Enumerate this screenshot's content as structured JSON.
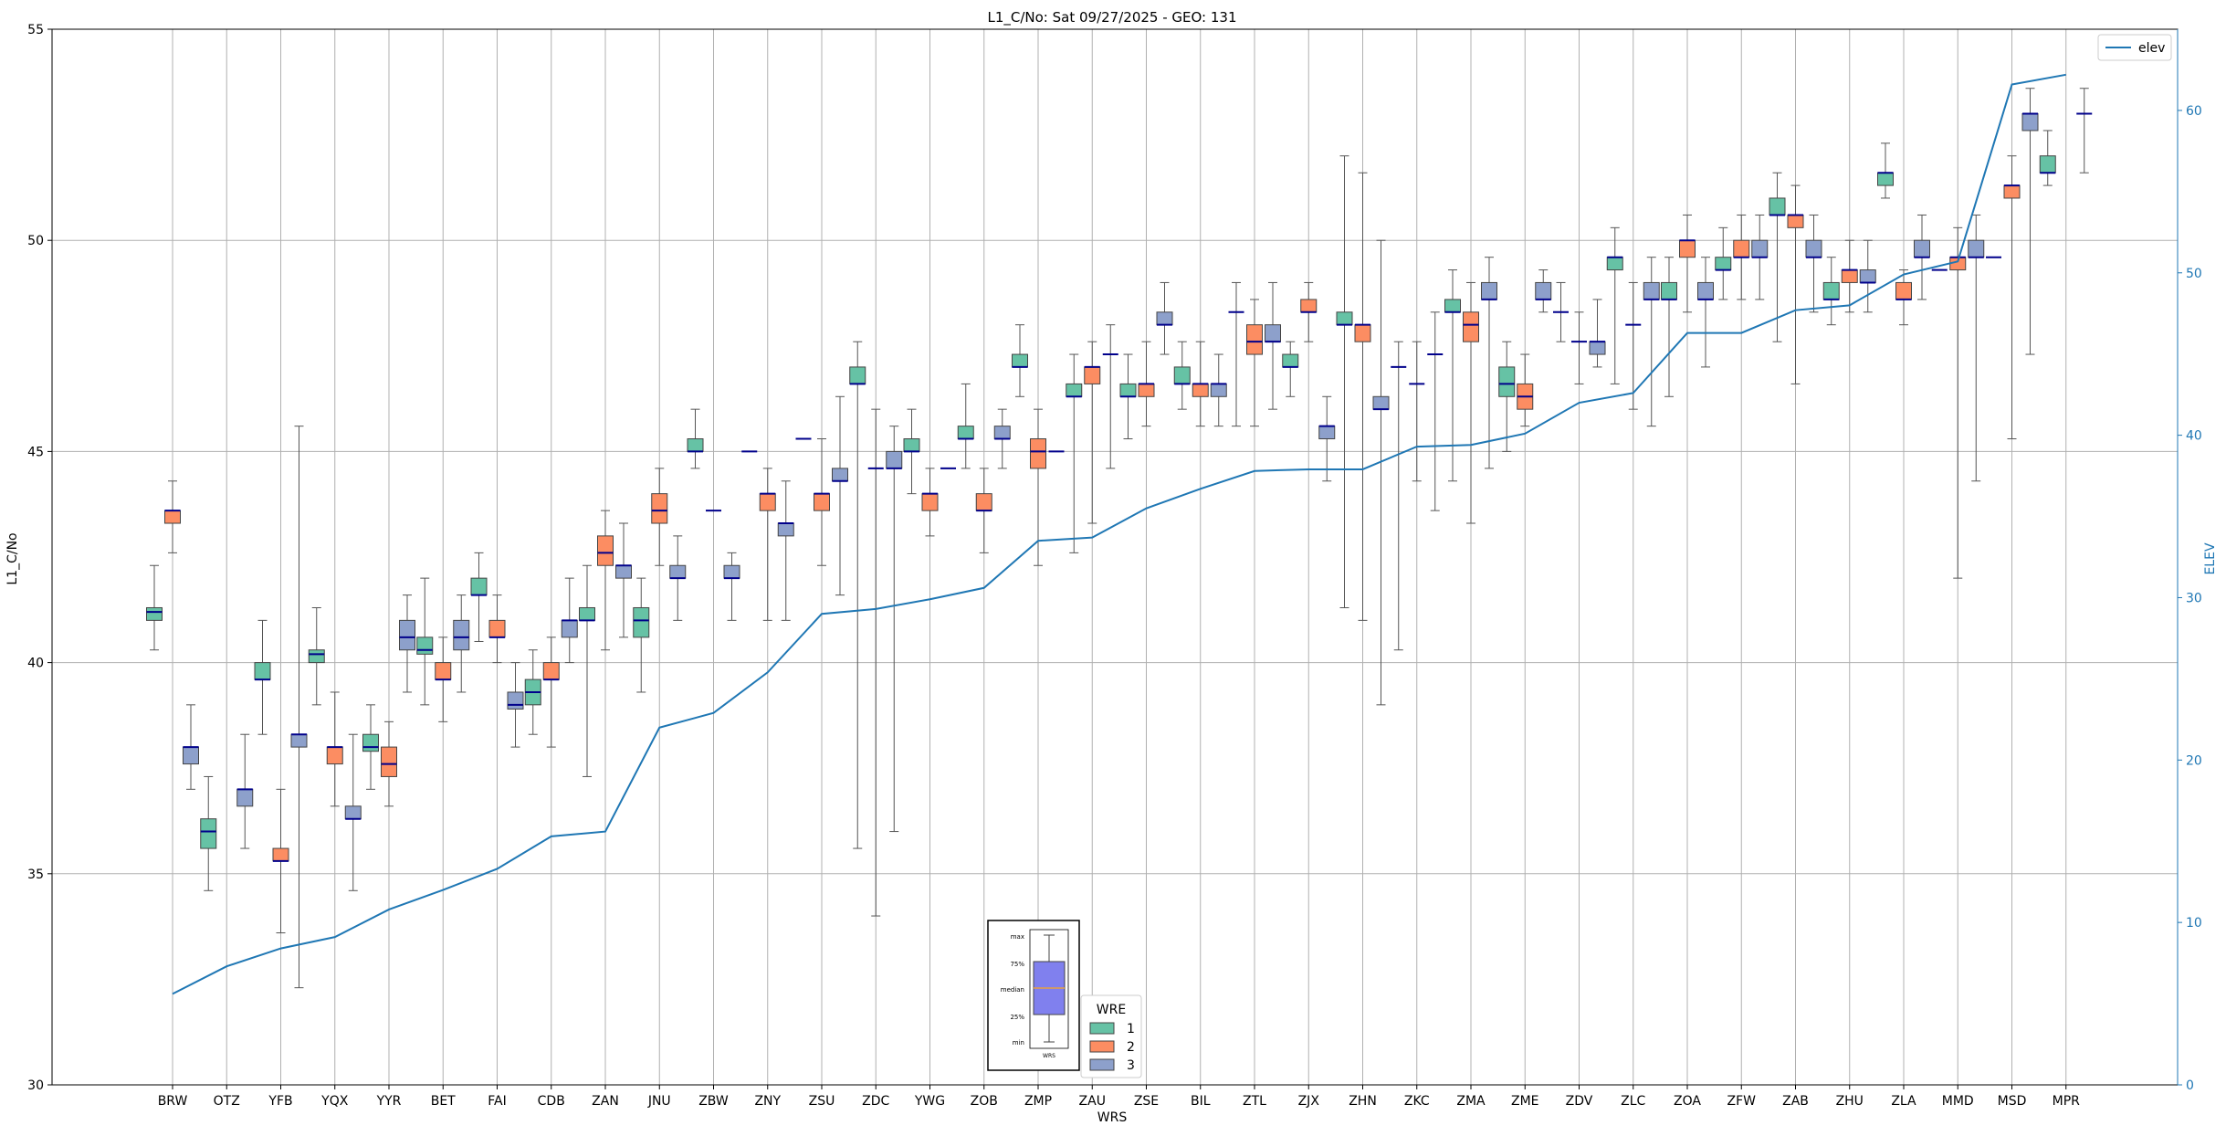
{
  "chart_data": {
    "type": "box",
    "title": "L1_C/No: Sat 09/27/2025 - GEO: 131",
    "xlabel": "WRS",
    "ylabel": "L1_C/No",
    "y2label": "ELEV",
    "ylim": [
      30,
      55
    ],
    "y2lim": [
      0,
      65
    ],
    "yticks": [
      30,
      35,
      40,
      45,
      50,
      55
    ],
    "y2ticks": [
      0,
      10,
      20,
      30,
      40,
      50,
      60
    ],
    "grid": true,
    "colors": {
      "wre1": "#66c2a5",
      "wre2": "#fc8d62",
      "wre3": "#8da0cb",
      "median": "#00008b",
      "elev": "#1f77b4",
      "whisker": "#555555"
    },
    "categories": [
      "BRW",
      "OTZ",
      "YFB",
      "YQX",
      "YYR",
      "BET",
      "FAI",
      "CDB",
      "ZAN",
      "JNU",
      "ZBW",
      "ZNY",
      "ZSU",
      "ZDC",
      "YWG",
      "ZOB",
      "ZMP",
      "ZAU",
      "ZSE",
      "BIL",
      "ZTL",
      "ZJX",
      "ZHN",
      "ZKC",
      "ZMA",
      "ZME",
      "ZDV",
      "ZLC",
      "ZOA",
      "ZFW",
      "ZAB",
      "ZHU",
      "ZLA",
      "MMD",
      "MSD",
      "MPR"
    ],
    "series": [
      {
        "name": "1",
        "boxes": [
          [
            40.3,
            41.0,
            41.2,
            41.3,
            42.3
          ],
          [
            34.6,
            35.6,
            36.0,
            36.3,
            37.3
          ],
          [
            38.3,
            39.6,
            39.6,
            40.0,
            41.0
          ],
          [
            39.0,
            40.0,
            40.2,
            40.3,
            41.3
          ],
          [
            37.0,
            37.9,
            38.0,
            38.3,
            39.0
          ],
          [
            39.0,
            40.2,
            40.3,
            40.6,
            42.0
          ],
          [
            40.5,
            41.6,
            41.6,
            42.0,
            42.6
          ],
          [
            38.3,
            39.0,
            39.3,
            39.6,
            40.3
          ],
          [
            37.3,
            41.0,
            41.0,
            41.3,
            42.3
          ],
          [
            39.3,
            40.6,
            41.0,
            41.3,
            42.0
          ],
          [
            44.6,
            45.0,
            45.0,
            45.3,
            46.0
          ],
          [
            45.0,
            45.0,
            45.0,
            45.0,
            45.0
          ],
          [
            45.3,
            45.3,
            45.3,
            45.3,
            45.3
          ],
          [
            35.6,
            46.6,
            46.6,
            47.0,
            47.6
          ],
          [
            44.0,
            45.0,
            45.0,
            45.3,
            46.0
          ],
          [
            44.6,
            45.3,
            45.3,
            45.6,
            46.6
          ],
          [
            46.3,
            47.0,
            47.0,
            47.3,
            48.0
          ],
          [
            42.6,
            46.3,
            46.3,
            46.6,
            47.3
          ],
          [
            45.3,
            46.3,
            46.3,
            46.6,
            47.3
          ],
          [
            46.0,
            46.6,
            46.6,
            47.0,
            47.6
          ],
          [
            45.6,
            48.3,
            48.3,
            48.3,
            49.0
          ],
          [
            46.3,
            47.0,
            47.0,
            47.3,
            47.6
          ],
          [
            41.3,
            48.0,
            48.0,
            48.3,
            52.0
          ],
          [
            40.3,
            47.0,
            47.0,
            47.0,
            47.6
          ],
          [
            44.3,
            48.3,
            48.3,
            48.6,
            49.3
          ],
          [
            45.0,
            46.3,
            46.6,
            47.0,
            47.6
          ],
          [
            47.6,
            48.3,
            48.3,
            48.3,
            49.0
          ],
          [
            46.6,
            49.3,
            49.6,
            49.6,
            50.3
          ],
          [
            46.3,
            48.6,
            48.6,
            49.0,
            49.6
          ],
          [
            48.6,
            49.3,
            49.3,
            49.6,
            50.3
          ],
          [
            47.6,
            50.6,
            50.6,
            51.0,
            51.6
          ],
          [
            48.0,
            48.6,
            48.6,
            49.0,
            49.6
          ],
          [
            51.0,
            51.3,
            51.6,
            51.6,
            52.3
          ],
          [
            49.3,
            49.3,
            49.3,
            49.3,
            49.3
          ],
          [
            49.6,
            49.6,
            49.6,
            49.6,
            49.6
          ],
          [
            51.3,
            51.6,
            51.6,
            52.0,
            52.6
          ]
        ]
      },
      {
        "name": "2",
        "boxes": [
          [
            42.6,
            43.3,
            43.6,
            43.6,
            44.3
          ],
          null,
          [
            33.6,
            35.3,
            35.3,
            35.6,
            37.0
          ],
          [
            36.6,
            37.6,
            38.0,
            38.0,
            39.3
          ],
          [
            36.6,
            37.3,
            37.6,
            38.0,
            38.6
          ],
          [
            38.6,
            39.6,
            39.6,
            40.0,
            40.6
          ],
          [
            40.0,
            40.6,
            40.6,
            41.0,
            41.6
          ],
          [
            38.0,
            39.6,
            39.6,
            40.0,
            40.6
          ],
          [
            40.3,
            42.3,
            42.6,
            43.0,
            43.6
          ],
          [
            42.3,
            43.3,
            43.6,
            44.0,
            44.6
          ],
          [
            43.6,
            43.6,
            43.6,
            43.6,
            43.6
          ],
          [
            41.0,
            43.6,
            44.0,
            44.0,
            44.6
          ],
          [
            42.3,
            43.6,
            44.0,
            44.0,
            45.3
          ],
          [
            34.0,
            44.6,
            44.6,
            44.6,
            46.0
          ],
          [
            43.0,
            43.6,
            44.0,
            44.0,
            44.6
          ],
          [
            42.6,
            43.6,
            43.6,
            44.0,
            44.6
          ],
          [
            42.3,
            44.6,
            45.0,
            45.3,
            46.0
          ],
          [
            43.3,
            46.6,
            47.0,
            47.0,
            47.6
          ],
          [
            45.6,
            46.3,
            46.6,
            46.6,
            47.6
          ],
          [
            45.6,
            46.3,
            46.6,
            46.6,
            47.6
          ],
          [
            45.6,
            47.3,
            47.6,
            48.0,
            48.6
          ],
          [
            47.6,
            48.3,
            48.3,
            48.6,
            49.0
          ],
          [
            41.0,
            47.6,
            48.0,
            48.0,
            51.6
          ],
          [
            44.3,
            46.6,
            46.6,
            46.6,
            47.6
          ],
          [
            43.3,
            47.6,
            48.0,
            48.3,
            49.0
          ],
          [
            45.6,
            46.0,
            46.3,
            46.6,
            47.3
          ],
          [
            46.6,
            47.6,
            47.6,
            47.6,
            48.3
          ],
          [
            46.0,
            48.0,
            48.0,
            48.0,
            49.0
          ],
          [
            48.3,
            49.6,
            50.0,
            50.0,
            50.6
          ],
          [
            48.6,
            49.6,
            49.6,
            50.0,
            50.6
          ],
          [
            46.6,
            50.3,
            50.6,
            50.6,
            51.3
          ],
          [
            48.3,
            49.0,
            49.3,
            49.3,
            50.0
          ],
          [
            48.0,
            48.6,
            48.6,
            49.0,
            49.3
          ],
          [
            42.0,
            49.3,
            49.6,
            49.6,
            50.3
          ],
          [
            45.3,
            51.0,
            51.3,
            51.3,
            52.0
          ],
          null
        ]
      },
      {
        "name": "3",
        "boxes": [
          [
            37.0,
            37.6,
            38.0,
            38.0,
            39.0
          ],
          [
            35.6,
            36.6,
            37.0,
            37.0,
            38.3
          ],
          [
            32.3,
            38.0,
            38.3,
            38.3,
            45.6
          ],
          [
            34.6,
            36.3,
            36.3,
            36.6,
            38.3
          ],
          [
            39.3,
            40.3,
            40.6,
            41.0,
            41.6
          ],
          [
            39.3,
            40.3,
            40.6,
            41.0,
            41.6
          ],
          [
            38.0,
            38.9,
            39.0,
            39.3,
            40.0
          ],
          [
            40.0,
            40.6,
            41.0,
            41.0,
            42.0
          ],
          [
            40.6,
            42.0,
            42.3,
            42.3,
            43.3
          ],
          [
            41.0,
            42.0,
            42.0,
            42.3,
            43.0
          ],
          [
            41.0,
            42.0,
            42.0,
            42.3,
            42.6
          ],
          [
            41.0,
            43.0,
            43.3,
            43.3,
            44.3
          ],
          [
            41.6,
            44.3,
            44.3,
            44.6,
            46.3
          ],
          [
            36.0,
            44.6,
            44.6,
            45.0,
            45.6
          ],
          [
            44.6,
            44.6,
            44.6,
            44.6,
            44.6
          ],
          [
            44.6,
            45.3,
            45.3,
            45.6,
            46.0
          ],
          [
            45.0,
            45.0,
            45.0,
            45.0,
            45.0
          ],
          [
            44.6,
            47.3,
            47.3,
            47.3,
            48.0
          ],
          [
            47.3,
            48.0,
            48.0,
            48.3,
            49.0
          ],
          [
            45.6,
            46.3,
            46.6,
            46.6,
            47.3
          ],
          [
            46.0,
            47.6,
            47.6,
            48.0,
            49.0
          ],
          [
            44.3,
            45.3,
            45.6,
            45.6,
            46.3
          ],
          [
            39.0,
            46.0,
            46.0,
            46.3,
            50.0
          ],
          [
            43.6,
            47.3,
            47.3,
            47.3,
            48.3
          ],
          [
            44.6,
            48.6,
            48.6,
            49.0,
            49.6
          ],
          [
            48.3,
            48.6,
            48.6,
            49.0,
            49.3
          ],
          [
            47.0,
            47.3,
            47.6,
            47.6,
            48.6
          ],
          [
            45.6,
            48.6,
            48.6,
            49.0,
            49.6
          ],
          [
            47.0,
            48.6,
            48.6,
            49.0,
            49.6
          ],
          [
            48.6,
            49.6,
            49.6,
            50.0,
            50.6
          ],
          [
            48.3,
            49.6,
            49.6,
            50.0,
            50.6
          ],
          [
            48.3,
            49.0,
            49.0,
            49.3,
            50.0
          ],
          [
            48.6,
            49.6,
            49.6,
            50.0,
            50.6
          ],
          [
            44.3,
            49.6,
            49.6,
            50.0,
            50.6
          ],
          [
            47.3,
            52.6,
            53.0,
            53.0,
            53.6
          ],
          [
            51.6,
            53.0,
            53.0,
            53.0,
            53.6
          ]
        ]
      }
    ],
    "elev": {
      "name": "elev",
      "values": [
        5.6,
        7.3,
        8.4,
        9.1,
        10.8,
        12.0,
        13.3,
        15.3,
        15.6,
        22.0,
        22.9,
        25.4,
        29.0,
        29.3,
        29.9,
        30.6,
        33.5,
        33.7,
        35.5,
        36.7,
        37.8,
        37.9,
        37.9,
        39.3,
        39.4,
        40.1,
        42.0,
        42.6,
        46.3,
        46.3,
        47.7,
        48.0,
        49.9,
        50.7,
        61.6,
        62.2
      ]
    },
    "legend": {
      "title": "WRE",
      "entries": [
        "1",
        "2",
        "3"
      ],
      "placement": "lower-center"
    },
    "line_legend": {
      "entries": [
        "elev"
      ],
      "placement": "top-right"
    },
    "key_box": {
      "labels": [
        "max",
        "75%",
        "median",
        "25%",
        "min"
      ],
      "xlabel": "WRS"
    }
  }
}
